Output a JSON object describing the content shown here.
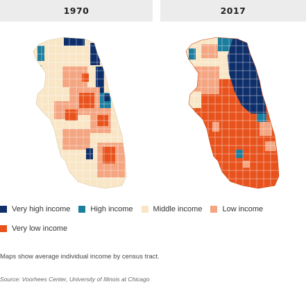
{
  "panels": [
    {
      "year": "1970"
    },
    {
      "year": "2017"
    }
  ],
  "colors": {
    "very_high": "#0f2f6b",
    "high": "#1c7d9e",
    "middle": "#f8e6c6",
    "low": "#f4a582",
    "very_low": "#e8531d",
    "boundary": "#ffffff"
  },
  "legend": {
    "items": [
      {
        "label": "Very high income",
        "color": "#0f2f6b"
      },
      {
        "label": "High income",
        "color": "#1c7d9e"
      },
      {
        "label": "Middle income",
        "color": "#f8e6c6"
      },
      {
        "label": "Low income",
        "color": "#f4a582"
      },
      {
        "label": "Very low income",
        "color": "#e8531d"
      }
    ]
  },
  "note": "Maps show average individual income by census tract.",
  "source": "Source: Voorhees Center, University of Illinois at Chicago"
}
